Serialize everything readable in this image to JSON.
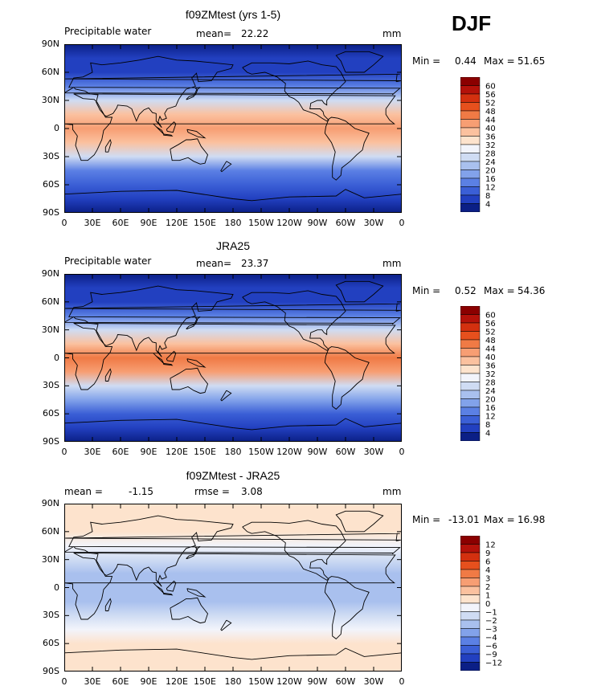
{
  "figure": {
    "season": "DJF"
  },
  "panels": [
    {
      "title": "f09ZMtest (yrs 1-5)",
      "left_label": "Precipitable water",
      "stat_label": "mean=",
      "stat_value": "22.22",
      "stat2_label": "",
      "stat2_value": "",
      "units": "mm",
      "minmax": {
        "min_label": "Min =",
        "min": "0.44",
        "max_label": "Max =",
        "max": "51.65"
      }
    },
    {
      "title": "JRA25",
      "left_label": "Precipitable water",
      "stat_label": "mean=",
      "stat_value": "23.37",
      "stat2_label": "",
      "stat2_value": "",
      "units": "mm",
      "minmax": {
        "min_label": "Min =",
        "min": "0.52",
        "max_label": "Max =",
        "max": "54.36"
      }
    },
    {
      "title": "f09ZMtest - JRA25",
      "left_label": "mean =",
      "stat_label": "",
      "stat_value": "-1.15",
      "stat2_label": "rmse =",
      "stat2_value": "3.08",
      "units": "mm",
      "minmax": {
        "min_label": "Min =",
        "min": "-13.01",
        "max_label": "Max =",
        "max": "16.98"
      }
    }
  ],
  "axes": {
    "y_ticks": [
      "90N",
      "60N",
      "30N",
      "0",
      "30S",
      "60S",
      "90S"
    ],
    "x_ticks": [
      "0",
      "30E",
      "60E",
      "90E",
      "120E",
      "150E",
      "180",
      "150W",
      "120W",
      "90W",
      "60W",
      "30W",
      "0"
    ]
  },
  "colorbars": {
    "field": {
      "labels": [
        "60",
        "56",
        "52",
        "48",
        "44",
        "40",
        "36",
        "32",
        "28",
        "24",
        "20",
        "16",
        "12",
        "8",
        "4"
      ],
      "colors": [
        "#8b0000",
        "#b4120a",
        "#d3300f",
        "#e6501d",
        "#f07a45",
        "#f79e73",
        "#fbc19f",
        "#fde3cd",
        "#f2f4fb",
        "#cfdcf3",
        "#a9c0ee",
        "#82a2ea",
        "#5b80e4",
        "#3b5fd6",
        "#2240c0",
        "#0b1f86"
      ]
    },
    "diff": {
      "labels": [
        "12",
        "9",
        "6",
        "4",
        "3",
        "2",
        "1",
        "0",
        "−1",
        "−2",
        "−3",
        "−4",
        "−6",
        "−9",
        "−12"
      ],
      "colors": [
        "#8b0000",
        "#b4120a",
        "#d3300f",
        "#e6501d",
        "#f07a45",
        "#f79e73",
        "#fbc19f",
        "#fde3cd",
        "#f2f4fb",
        "#cfdcf3",
        "#a9c0ee",
        "#82a2ea",
        "#5b80e4",
        "#3b5fd6",
        "#2240c0",
        "#0b1f86"
      ]
    }
  },
  "chart_data": [
    {
      "type": "heatmap",
      "title": "f09ZMtest (yrs 1-5)",
      "variable": "Precipitable water",
      "units": "mm",
      "mean": 22.22,
      "min": 0.44,
      "max": 51.65,
      "x_range": [
        "0",
        "0"
      ],
      "y_range": [
        "90S",
        "90N"
      ],
      "contour_levels": [
        4,
        8,
        12,
        16,
        20,
        24,
        28,
        32,
        36,
        40,
        44,
        48,
        52,
        56,
        60
      ],
      "zonal_mean_profile": {
        "lat": [
          90,
          75,
          60,
          45,
          30,
          15,
          0,
          -15,
          -30,
          -45,
          -60,
          -75,
          -90
        ],
        "value": [
          3,
          5,
          8,
          14,
          26,
          38,
          44,
          40,
          26,
          16,
          10,
          6,
          3
        ]
      }
    },
    {
      "type": "heatmap",
      "title": "JRA25",
      "variable": "Precipitable water",
      "units": "mm",
      "mean": 23.37,
      "min": 0.52,
      "max": 54.36,
      "x_range": [
        "0",
        "0"
      ],
      "y_range": [
        "90S",
        "90N"
      ],
      "contour_levels": [
        4,
        8,
        12,
        16,
        20,
        24,
        28,
        32,
        36,
        40,
        44,
        48,
        52,
        56,
        60
      ],
      "zonal_mean_profile": {
        "lat": [
          90,
          75,
          60,
          45,
          30,
          15,
          0,
          -15,
          -30,
          -45,
          -60,
          -75,
          -90
        ],
        "value": [
          3,
          5,
          8,
          15,
          27,
          40,
          46,
          42,
          27,
          17,
          10,
          6,
          3
        ]
      }
    },
    {
      "type": "heatmap",
      "title": "f09ZMtest - JRA25",
      "units": "mm",
      "mean": -1.15,
      "rmse": 3.08,
      "min": -13.01,
      "max": 16.98,
      "x_range": [
        "0",
        "0"
      ],
      "y_range": [
        "90S",
        "90N"
      ],
      "contour_levels": [
        -12,
        -9,
        -6,
        -4,
        -3,
        -2,
        -1,
        0,
        1,
        2,
        3,
        4,
        6,
        9,
        12
      ],
      "zonal_mean_profile": {
        "lat": [
          90,
          75,
          60,
          45,
          30,
          15,
          0,
          -15,
          -30,
          -45,
          -60,
          -75,
          -90
        ],
        "value": [
          0.5,
          0.5,
          0.5,
          -0.5,
          -1,
          -2,
          -2,
          -2,
          -1,
          -0.5,
          0.5,
          0.5,
          0.5
        ]
      }
    }
  ]
}
